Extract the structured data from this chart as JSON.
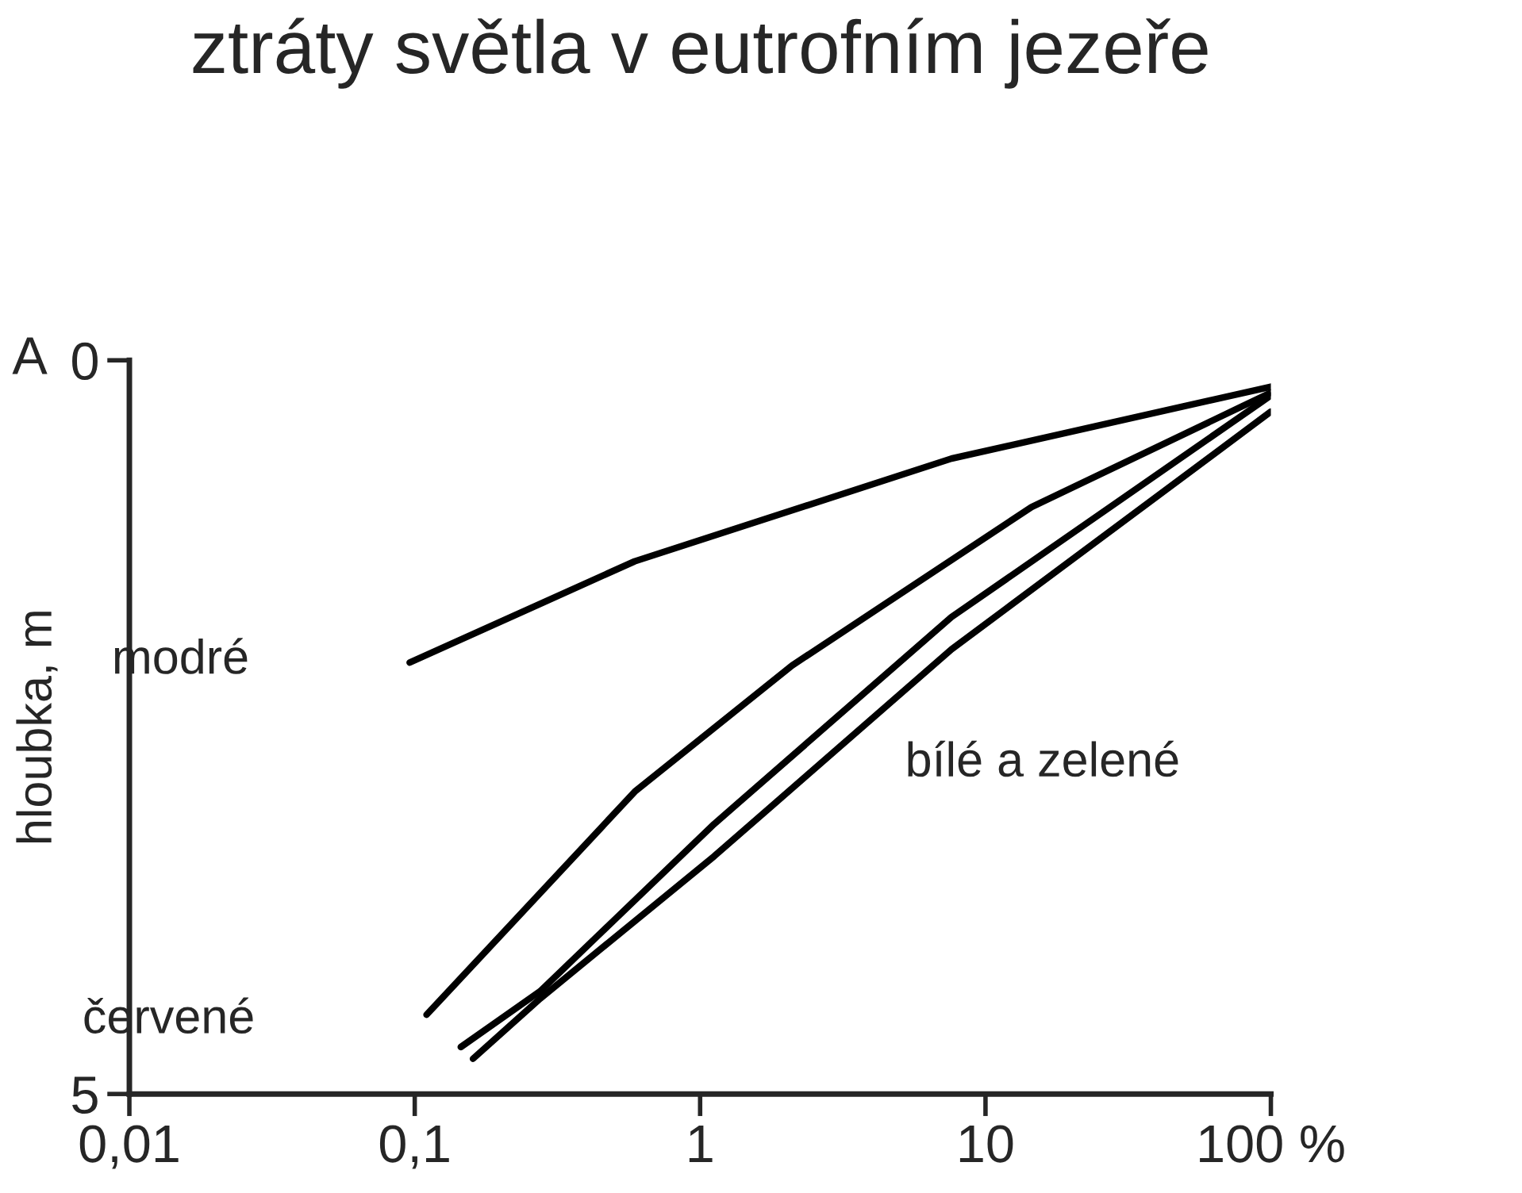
{
  "chart_data": {
    "type": "line",
    "title": "ztráty světla v eutrofním jezeře",
    "ylabel": "hloubka, m",
    "annotations": [
      "A",
      "modré",
      "červené",
      "bílé a zelené"
    ],
    "log": "x",
    "xlim": [
      0.01,
      100
    ],
    "ylim": [
      5,
      0
    ],
    "xticks": [
      {
        "value": 0.01,
        "label": "0,01"
      },
      {
        "value": 0.1,
        "label": "0,1"
      },
      1,
      10,
      {
        "value": 100,
        "label": "100 %"
      }
    ],
    "yticks": [
      0,
      5
    ],
    "grid": false,
    "legend": false,
    "marker": "none",
    "line_style": "solid",
    "series": [
      {
        "color": "#000000",
        "x": [
          0.096,
          0.59,
          7.6,
          100
        ],
        "values": [
          2.06,
          1.37,
          0.67,
          0.18
        ]
      },
      {
        "color": "#000000",
        "x": [
          0.11,
          0.59,
          2.1,
          14.5,
          100
        ],
        "values": [
          4.46,
          2.94,
          2.08,
          1.0,
          0.22
        ]
      },
      {
        "color": "#000000",
        "x": [
          0.145,
          0.275,
          1.12,
          7.6,
          100
        ],
        "values": [
          4.68,
          4.3,
          3.16,
          1.75,
          0.24
        ]
      },
      {
        "color": "#000000",
        "x": [
          0.16,
          0.275,
          1.12,
          7.6,
          100
        ],
        "values": [
          4.76,
          4.35,
          3.38,
          1.97,
          0.35
        ]
      }
    ]
  }
}
